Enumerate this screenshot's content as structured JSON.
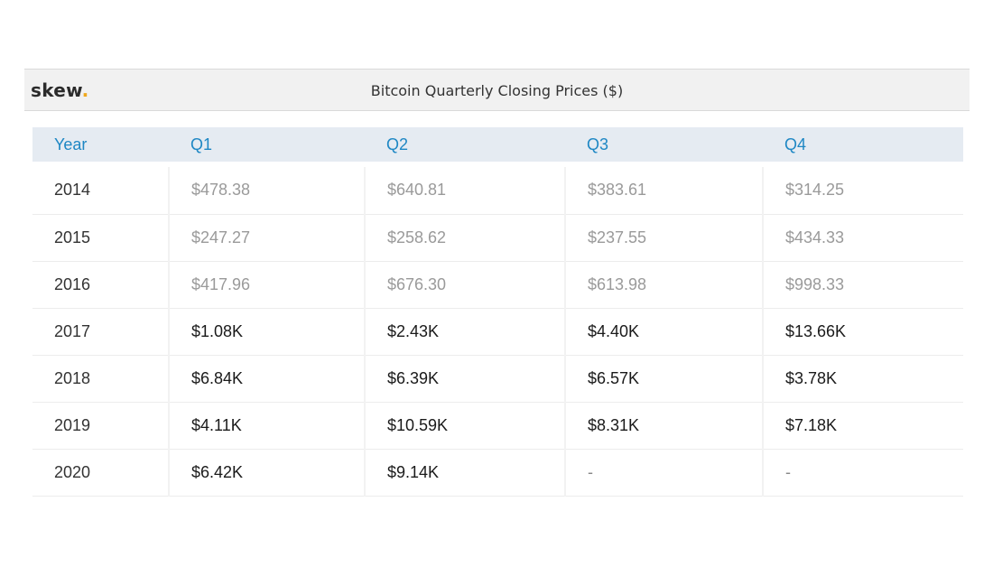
{
  "brand": {
    "name": "skew",
    "dot": "."
  },
  "chart_data": {
    "type": "table",
    "title": "Bitcoin Quarterly Closing Prices ($)",
    "columns": [
      "Year",
      "Q1",
      "Q2",
      "Q3",
      "Q4"
    ],
    "rows": [
      {
        "year": "2014",
        "cells": [
          "$478.38",
          "$640.81",
          "$383.61",
          "$314.25"
        ],
        "muted": [
          true,
          true,
          true,
          true
        ]
      },
      {
        "year": "2015",
        "cells": [
          "$247.27",
          "$258.62",
          "$237.55",
          "$434.33"
        ],
        "muted": [
          true,
          true,
          true,
          true
        ]
      },
      {
        "year": "2016",
        "cells": [
          "$417.96",
          "$676.30",
          "$613.98",
          "$998.33"
        ],
        "muted": [
          true,
          true,
          true,
          true
        ]
      },
      {
        "year": "2017",
        "cells": [
          "$1.08K",
          "$2.43K",
          "$4.40K",
          "$13.66K"
        ],
        "muted": [
          false,
          false,
          false,
          false
        ]
      },
      {
        "year": "2018",
        "cells": [
          "$6.84K",
          "$6.39K",
          "$6.57K",
          "$3.78K"
        ],
        "muted": [
          false,
          false,
          false,
          false
        ]
      },
      {
        "year": "2019",
        "cells": [
          "$4.11K",
          "$10.59K",
          "$8.31K",
          "$7.18K"
        ],
        "muted": [
          false,
          false,
          false,
          false
        ]
      },
      {
        "year": "2020",
        "cells": [
          "$6.42K",
          "$9.14K",
          "-",
          "-"
        ],
        "muted": [
          false,
          false,
          false,
          false
        ]
      }
    ],
    "colors": {
      "header_text": "#1e87c4",
      "header_bg": "#e5ebf2",
      "muted_text": "#9a9a9a",
      "brand_dot": "#f0a81c"
    }
  }
}
